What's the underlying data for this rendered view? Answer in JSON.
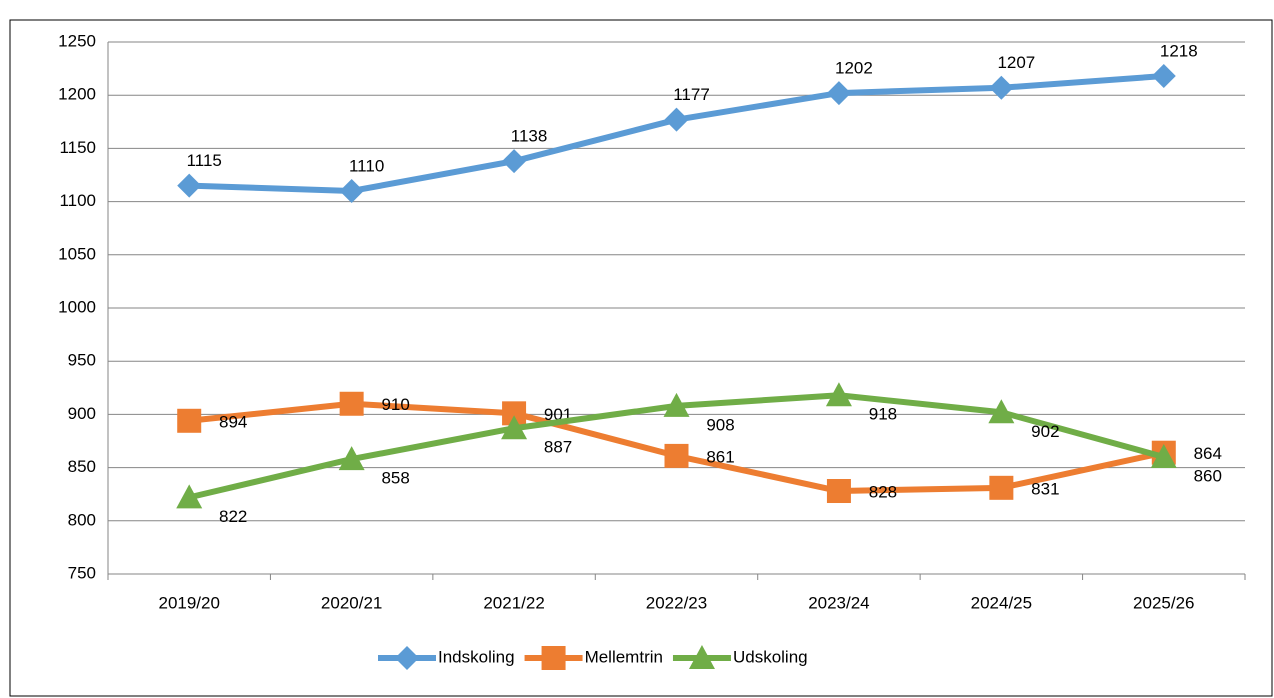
{
  "chart_data": {
    "type": "line",
    "categories": [
      "2019/20",
      "2020/21",
      "2021/22",
      "2022/23",
      "2023/24",
      "2024/25",
      "2025/26"
    ],
    "series": [
      {
        "name": "Indskoling",
        "color": "#5b9bd5",
        "marker": "diamond",
        "values": [
          1115,
          1110,
          1138,
          1177,
          1202,
          1207,
          1218
        ]
      },
      {
        "name": "Mellemtrin",
        "color": "#ed7d31",
        "marker": "square",
        "values": [
          894,
          910,
          901,
          861,
          828,
          831,
          864
        ]
      },
      {
        "name": "Udskoling",
        "color": "#70ad47",
        "marker": "triangle",
        "values": [
          822,
          858,
          887,
          908,
          918,
          902,
          860
        ]
      }
    ],
    "ylim": [
      750,
      1250
    ],
    "yticks": [
      750,
      800,
      850,
      900,
      950,
      1000,
      1050,
      1100,
      1150,
      1200,
      1250
    ],
    "grid": true,
    "legend": "bottom"
  }
}
